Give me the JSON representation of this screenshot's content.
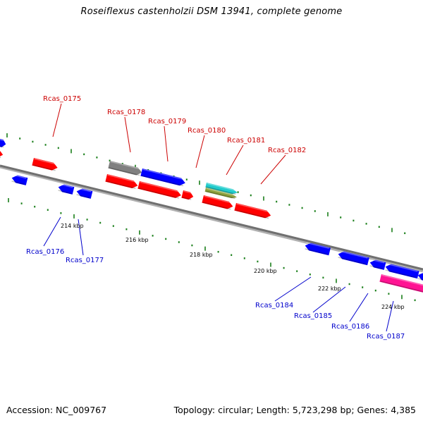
{
  "header": {
    "title": "Roseiflexus castenholzii DSM 13941, complete genome"
  },
  "footer": {
    "accession": "Accession: NC_009767",
    "topology": "Topology: circular; Length: 5,723,298 bp; Genes: 4,385"
  },
  "colors": {
    "forward_gene": "#ff0000",
    "reverse_gene": "#0000ff",
    "pseudogene": "#808080",
    "rna_gene_cyan": "#22cccc",
    "rna_gene_olive": "#8ca13c",
    "highlight_gene": "#ff1493",
    "backbone": "#808080",
    "tick": "#1a7f1a",
    "forward_label": "#cc0000",
    "reverse_label": "#0000cc"
  },
  "scale_ticks": [
    {
      "label": "214 kbp"
    },
    {
      "label": "216 kbp"
    },
    {
      "label": "218 kbp"
    },
    {
      "label": "220 kbp"
    },
    {
      "label": "222 kbp"
    },
    {
      "label": "224 kbp"
    }
  ],
  "forward_labels": [
    {
      "text": "Rcas_0175"
    },
    {
      "text": "Rcas_0178"
    },
    {
      "text": "Rcas_0179"
    },
    {
      "text": "Rcas_0180"
    },
    {
      "text": "Rcas_0181"
    },
    {
      "text": "Rcas_0182"
    }
  ],
  "reverse_labels": [
    {
      "text": "Rcas_0176"
    },
    {
      "text": "Rcas_0177"
    },
    {
      "text": "Rcas_0184"
    },
    {
      "text": "Rcas_0185"
    },
    {
      "text": "Rcas_0186"
    },
    {
      "text": "Rcas_0187"
    }
  ]
}
